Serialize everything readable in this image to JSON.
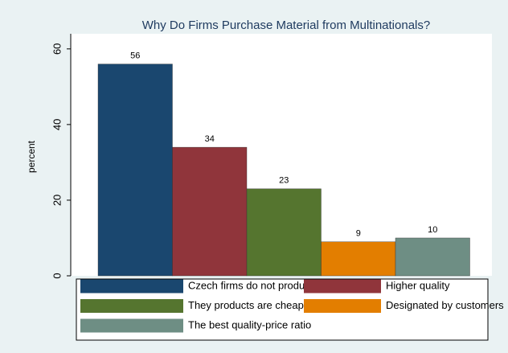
{
  "chart_data": {
    "type": "bar",
    "title": "Why Do Firms Purchase Material from Multinationals?",
    "y_label": "percent",
    "series": [
      {
        "name": "Czech firms do not produce it",
        "color": "#1a476f",
        "values": [
          56
        ]
      },
      {
        "name": "Higher quality",
        "color": "#90353b",
        "values": [
          34
        ]
      },
      {
        "name": "They products are cheaper",
        "color": "#55752f",
        "values": [
          23
        ]
      },
      {
        "name": "Designated by customers",
        "color": "#e37e00",
        "values": [
          9
        ]
      },
      {
        "name": "The best quality-price ratio",
        "color": "#6e8e84",
        "values": [
          10
        ]
      }
    ],
    "ylim": [
      0,
      64
    ],
    "yticks": [
      0,
      20,
      40,
      60
    ],
    "grid": false
  }
}
